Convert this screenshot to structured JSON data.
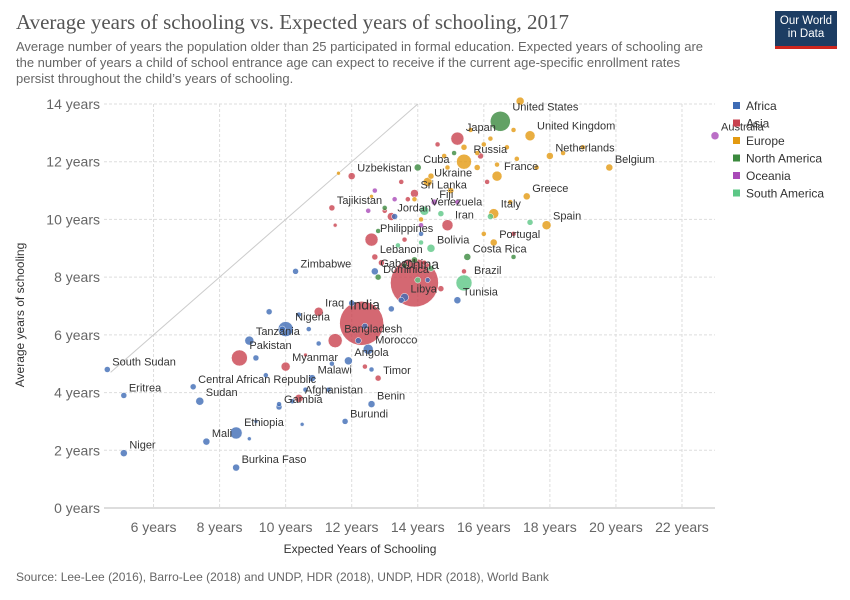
{
  "header": {
    "title": "Average years of schooling vs. Expected years of schooling, 2017",
    "subtitle": "Average number of years the population older than 25 participated in formal education. Expected years of schooling are the number of years a child of school entrance age can expect to receive if the current age-specific enrollment rates persist throughout the child’s years of schooling.",
    "logo_line1": "Our World",
    "logo_line2": "in Data"
  },
  "footer": {
    "source": "Source: Lee-Lee (2016), Barro-Lee (2018) and UNDP, HDR (2018), UNDP, HDR (2018), World Bank"
  },
  "chart_data": {
    "type": "scatter",
    "title": "Average years of schooling vs. Expected years of schooling, 2017",
    "xlabel": "Expected Years of Schooling",
    "ylabel": "Average years of schooling",
    "xlim": [
      4.5,
      23
    ],
    "ylim": [
      0,
      14
    ],
    "x_ticks": [
      6,
      8,
      10,
      12,
      14,
      16,
      18,
      20,
      22
    ],
    "x_tick_labels": [
      "6 years",
      "8 years",
      "10 years",
      "12 years",
      "14 years",
      "16 years",
      "18 years",
      "20 years",
      "22 years"
    ],
    "y_ticks": [
      0,
      2,
      4,
      6,
      8,
      10,
      12,
      14
    ],
    "y_tick_labels": [
      "0 years",
      "2 years",
      "4 years",
      "6 years",
      "8 years",
      "10 years",
      "12 years",
      "14 years"
    ],
    "grid": true,
    "legend_position": "right",
    "series": [
      {
        "name": "Africa",
        "color": "#3e6cb5"
      },
      {
        "name": "Asia",
        "color": "#c9424f"
      },
      {
        "name": "Europe",
        "color": "#e39a11"
      },
      {
        "name": "North America",
        "color": "#3b8a3e"
      },
      {
        "name": "Oceania",
        "color": "#a94ab8"
      },
      {
        "name": "South America",
        "color": "#5cc786"
      }
    ],
    "labeled_points": [
      {
        "label": "South Sudan",
        "x": 4.6,
        "y": 4.8,
        "r": 3,
        "region": "Africa"
      },
      {
        "label": "Eritrea",
        "x": 5.1,
        "y": 3.9,
        "r": 3,
        "region": "Africa"
      },
      {
        "label": "Niger",
        "x": 5.1,
        "y": 1.9,
        "r": 3.5,
        "region": "Africa"
      },
      {
        "label": "Sudan",
        "x": 7.4,
        "y": 3.7,
        "r": 4,
        "region": "Africa"
      },
      {
        "label": "Central African Republic",
        "x": 7.2,
        "y": 4.2,
        "r": 3,
        "region": "Africa"
      },
      {
        "label": "Mali",
        "x": 7.6,
        "y": 2.3,
        "r": 3.5,
        "region": "Africa"
      },
      {
        "label": "Ethiopia",
        "x": 8.5,
        "y": 2.6,
        "r": 6,
        "region": "Africa"
      },
      {
        "label": "Burkina Faso",
        "x": 8.5,
        "y": 1.4,
        "r": 3.5,
        "region": "Africa"
      },
      {
        "label": "Pakistan",
        "x": 8.6,
        "y": 5.2,
        "r": 8,
        "region": "Asia"
      },
      {
        "label": "Tanzania",
        "x": 8.9,
        "y": 5.8,
        "r": 4.5,
        "region": "Africa"
      },
      {
        "label": "Gambia",
        "x": 9.8,
        "y": 3.5,
        "r": 3,
        "region": "Africa"
      },
      {
        "label": "Nigeria",
        "x": 10.0,
        "y": 6.2,
        "r": 7.5,
        "region": "Africa"
      },
      {
        "label": "Myanmar",
        "x": 10.0,
        "y": 4.9,
        "r": 4.5,
        "region": "Asia"
      },
      {
        "label": "Afghanistan",
        "x": 10.4,
        "y": 3.8,
        "r": 4,
        "region": "Asia"
      },
      {
        "label": "Zimbabwe",
        "x": 10.3,
        "y": 8.2,
        "r": 3,
        "region": "Africa"
      },
      {
        "label": "Malawi",
        "x": 10.8,
        "y": 4.5,
        "r": 3.5,
        "region": "Africa"
      },
      {
        "label": "Iraq",
        "x": 11.0,
        "y": 6.8,
        "r": 4.5,
        "region": "Asia"
      },
      {
        "label": "Bangladesh",
        "x": 11.5,
        "y": 5.8,
        "r": 7,
        "region": "Asia"
      },
      {
        "label": "Burundi",
        "x": 11.8,
        "y": 3.0,
        "r": 3,
        "region": "Africa"
      },
      {
        "label": "Angola",
        "x": 11.9,
        "y": 5.1,
        "r": 4,
        "region": "Africa"
      },
      {
        "label": "Uzbekistan",
        "x": 12.0,
        "y": 11.5,
        "r": 3.5,
        "region": "Asia"
      },
      {
        "label": "Tajikistan",
        "x": 11.4,
        "y": 10.4,
        "r": 3,
        "region": "Asia"
      },
      {
        "label": "Morocco",
        "x": 12.5,
        "y": 5.5,
        "r": 5,
        "region": "Africa"
      },
      {
        "label": "Timor",
        "x": 12.8,
        "y": 4.5,
        "r": 3,
        "region": "Asia"
      },
      {
        "label": "Benin",
        "x": 12.6,
        "y": 3.6,
        "r": 3.5,
        "region": "Africa"
      },
      {
        "label": "India",
        "x": 12.3,
        "y": 6.4,
        "r": 22,
        "region": "Asia"
      },
      {
        "label": "Philippines",
        "x": 12.6,
        "y": 9.3,
        "r": 6.5,
        "region": "Asia"
      },
      {
        "label": "Lebanon",
        "x": 12.7,
        "y": 8.7,
        "r": 3,
        "region": "Asia"
      },
      {
        "label": "Gabon",
        "x": 12.7,
        "y": 8.2,
        "r": 3.5,
        "region": "Africa"
      },
      {
        "label": "Dominica",
        "x": 12.8,
        "y": 8.0,
        "r": 3,
        "region": "North America"
      },
      {
        "label": "Jordan",
        "x": 13.2,
        "y": 10.1,
        "r": 4,
        "region": "Asia"
      },
      {
        "label": "Sri Lanka",
        "x": 13.9,
        "y": 10.9,
        "r": 4,
        "region": "Asia"
      },
      {
        "label": "Cuba",
        "x": 14.0,
        "y": 11.8,
        "r": 3.5,
        "region": "North America"
      },
      {
        "label": "China",
        "x": 13.9,
        "y": 7.8,
        "r": 24,
        "region": "Asia"
      },
      {
        "label": "Libya",
        "x": 13.6,
        "y": 7.3,
        "r": 4,
        "region": "Africa"
      },
      {
        "label": "Bolivia",
        "x": 14.4,
        "y": 9.0,
        "r": 4,
        "region": "South America"
      },
      {
        "label": "Venezuela",
        "x": 14.2,
        "y": 10.3,
        "r": 4.5,
        "region": "South America"
      },
      {
        "label": "Fiji",
        "x": 14.5,
        "y": 10.6,
        "r": 3,
        "region": "Oceania"
      },
      {
        "label": "Ukraine",
        "x": 14.3,
        "y": 11.3,
        "r": 4.5,
        "region": "Europe"
      },
      {
        "label": "Iran",
        "x": 14.9,
        "y": 9.8,
        "r": 5.5,
        "region": "Asia"
      },
      {
        "label": "Tunisia",
        "x": 15.2,
        "y": 7.2,
        "r": 3.5,
        "region": "Africa"
      },
      {
        "label": "Brazil",
        "x": 15.4,
        "y": 7.8,
        "r": 8,
        "region": "South America"
      },
      {
        "label": "Japan",
        "x": 15.2,
        "y": 12.8,
        "r": 6.5,
        "region": "Asia"
      },
      {
        "label": "Russia",
        "x": 15.4,
        "y": 12.0,
        "r": 7.5,
        "region": "Europe"
      },
      {
        "label": "Costa Rica",
        "x": 15.5,
        "y": 8.7,
        "r": 3.5,
        "region": "North America"
      },
      {
        "label": "France",
        "x": 16.4,
        "y": 11.5,
        "r": 5,
        "region": "Europe"
      },
      {
        "label": "Italy",
        "x": 16.3,
        "y": 10.2,
        "r": 5,
        "region": "Europe"
      },
      {
        "label": "Portugal",
        "x": 16.3,
        "y": 9.2,
        "r": 3.5,
        "region": "Europe"
      },
      {
        "label": "United States",
        "x": 16.5,
        "y": 13.4,
        "r": 10,
        "region": "North America"
      },
      {
        "label": "United Kingdom",
        "x": 17.4,
        "y": 12.9,
        "r": 5,
        "region": "Europe"
      },
      {
        "label": "Greece",
        "x": 17.3,
        "y": 10.8,
        "r": 3.5,
        "region": "Europe"
      },
      {
        "label": "Spain",
        "x": 17.9,
        "y": 9.8,
        "r": 4.5,
        "region": "Europe"
      },
      {
        "label": "Netherlands",
        "x": 18.0,
        "y": 12.2,
        "r": 3.5,
        "region": "Europe"
      },
      {
        "label": "Belgium",
        "x": 19.8,
        "y": 11.8,
        "r": 3.5,
        "region": "Europe"
      },
      {
        "label": "Australia",
        "x": 23.0,
        "y": 12.9,
        "r": 4,
        "region": "Oceania"
      }
    ],
    "unlabeled_points": [
      [
        15.4,
        12.5,
        3,
        "Europe"
      ],
      [
        15.8,
        12.3,
        2.5,
        "Europe"
      ],
      [
        16.0,
        12.6,
        2.5,
        "Europe"
      ],
      [
        16.2,
        12.8,
        2.5,
        "Europe"
      ],
      [
        16.7,
        12.5,
        2.5,
        "Europe"
      ],
      [
        17.0,
        12.1,
        2.5,
        "Europe"
      ],
      [
        16.9,
        13.1,
        2.5,
        "Europe"
      ],
      [
        17.1,
        14.1,
        4,
        "Europe"
      ],
      [
        15.6,
        13.1,
        2.5,
        "Europe"
      ],
      [
        14.8,
        12.2,
        2.5,
        "Europe"
      ],
      [
        15.0,
        11.0,
        3,
        "Europe"
      ],
      [
        14.9,
        11.8,
        2.5,
        "Europe"
      ],
      [
        15.8,
        11.8,
        3,
        "Europe"
      ],
      [
        16.4,
        11.9,
        2.5,
        "Europe"
      ],
      [
        18.4,
        12.3,
        2.5,
        "Europe"
      ],
      [
        17.6,
        11.8,
        2.5,
        "Europe"
      ],
      [
        19.0,
        12.5,
        2.5,
        "Europe"
      ],
      [
        16.8,
        10.6,
        2.5,
        "Europe"
      ],
      [
        16.0,
        9.5,
        2.5,
        "Europe"
      ],
      [
        14.4,
        11.5,
        3,
        "Europe"
      ],
      [
        13.9,
        10.7,
        2.5,
        "Europe"
      ],
      [
        14.1,
        10.0,
        2.5,
        "Europe"
      ],
      [
        12.6,
        10.8,
        2,
        "Europe"
      ],
      [
        11.6,
        11.6,
        2,
        "Europe"
      ],
      [
        16.1,
        11.3,
        2.5,
        "Asia"
      ],
      [
        15.9,
        12.2,
        3,
        "Asia"
      ],
      [
        14.6,
        12.6,
        2.5,
        "Asia"
      ],
      [
        13.5,
        11.3,
        2.5,
        "Asia"
      ],
      [
        13.0,
        10.3,
        2.5,
        "Asia"
      ],
      [
        13.7,
        10.7,
        2.5,
        "Asia"
      ],
      [
        14.2,
        8.5,
        2.5,
        "Asia"
      ],
      [
        15.4,
        8.2,
        2.5,
        "Asia"
      ],
      [
        14.7,
        7.6,
        3,
        "Asia"
      ],
      [
        13.6,
        9.3,
        2.5,
        "Asia"
      ],
      [
        11.5,
        9.8,
        2,
        "Asia"
      ],
      [
        16.9,
        9.5,
        2.5,
        "Asia"
      ],
      [
        12.9,
        8.5,
        3,
        "Asia"
      ],
      [
        12.4,
        4.9,
        2.5,
        "Asia"
      ],
      [
        10.6,
        5.3,
        2,
        "Asia"
      ],
      [
        14.7,
        10.2,
        3,
        "South America"
      ],
      [
        14.4,
        8.3,
        3,
        "South America"
      ],
      [
        14.0,
        7.9,
        3,
        "South America"
      ],
      [
        13.4,
        9.1,
        2.5,
        "South America"
      ],
      [
        17.4,
        9.9,
        3,
        "South America"
      ],
      [
        16.2,
        10.1,
        3,
        "South America"
      ],
      [
        14.1,
        9.2,
        2.5,
        "South America"
      ],
      [
        15.1,
        12.3,
        2.5,
        "North America"
      ],
      [
        13.9,
        8.6,
        3,
        "North America"
      ],
      [
        13.6,
        8.4,
        2.5,
        "North America"
      ],
      [
        13.0,
        10.4,
        2.5,
        "North America"
      ],
      [
        12.8,
        9.6,
        2.5,
        "North America"
      ],
      [
        16.9,
        8.7,
        2.5,
        "North America"
      ],
      [
        13.3,
        10.7,
        2.5,
        "Oceania"
      ],
      [
        12.7,
        11.0,
        2.5,
        "Oceania"
      ],
      [
        14.1,
        9.8,
        2.5,
        "Oceania"
      ],
      [
        12.5,
        10.3,
        2.5,
        "Oceania"
      ],
      [
        15.2,
        10.6,
        2.5,
        "Oceania"
      ],
      [
        10.4,
        6.7,
        2.5,
        "Africa"
      ],
      [
        10.7,
        6.2,
        2.5,
        "Africa"
      ],
      [
        11.0,
        5.7,
        2.5,
        "Africa"
      ],
      [
        9.5,
        6.8,
        3,
        "Africa"
      ],
      [
        9.9,
        6.2,
        3,
        "Africa"
      ],
      [
        9.8,
        3.6,
        2.5,
        "Africa"
      ],
      [
        9.1,
        3.0,
        2,
        "Africa"
      ],
      [
        8.9,
        2.4,
        2,
        "Africa"
      ],
      [
        10.5,
        2.9,
        2,
        "Africa"
      ],
      [
        9.1,
        5.2,
        3,
        "Africa"
      ],
      [
        11.3,
        4.1,
        2.5,
        "Africa"
      ],
      [
        11.4,
        5.0,
        2.5,
        "Africa"
      ],
      [
        12.4,
        6.3,
        3,
        "Africa"
      ],
      [
        12.2,
        5.8,
        3,
        "Africa"
      ],
      [
        12.6,
        4.8,
        2.5,
        "Africa"
      ],
      [
        12.0,
        7.1,
        3,
        "Africa"
      ],
      [
        13.2,
        6.9,
        3,
        "Africa"
      ],
      [
        13.5,
        7.2,
        3,
        "Africa"
      ],
      [
        14.3,
        7.9,
        2.5,
        "Africa"
      ],
      [
        14.1,
        9.5,
        2.5,
        "Africa"
      ],
      [
        13.3,
        10.1,
        3,
        "Africa"
      ],
      [
        9.4,
        4.6,
        2.5,
        "Africa"
      ],
      [
        10.6,
        4.1,
        2.5,
        "Africa"
      ],
      [
        10.2,
        3.7,
        2.5,
        "Africa"
      ]
    ]
  }
}
